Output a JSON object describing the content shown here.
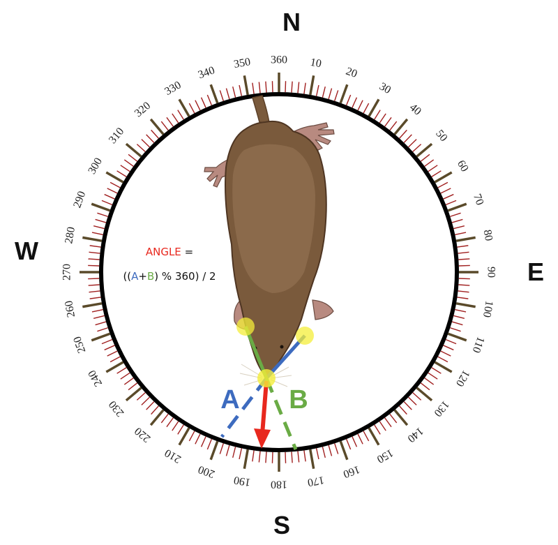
{
  "cardinals": {
    "north": "N",
    "east": "E",
    "south": "S",
    "west": "W"
  },
  "degree_labels": [
    "360",
    "10",
    "20",
    "30",
    "40",
    "50",
    "60",
    "70",
    "80",
    "90",
    "100",
    "110",
    "120",
    "130",
    "140",
    "150",
    "160",
    "170",
    "180",
    "190",
    "200",
    "210",
    "220",
    "230",
    "240",
    "250",
    "260",
    "270",
    "280",
    "290",
    "300",
    "310",
    "320",
    "330",
    "340",
    "350"
  ],
  "formula": {
    "angle_word": "ANGLE",
    "equals": " =",
    "line2_open": "((",
    "a": "A",
    "plus": "+",
    "b": "B",
    "line2_close": ") % 360) / 2"
  },
  "vectors": {
    "a_label": "A",
    "b_label": "B"
  },
  "colors": {
    "red_arrow": "#e8281e",
    "a_blue": "#3d6bbf",
    "b_green": "#6aab45",
    "marker_yellow": "#f4ee3a",
    "major_tick": "#5a4a2a",
    "minor_tick": "#a01f1f",
    "ring": "#000000",
    "mole_body": "#7a5a3c",
    "mole_back": "#8b6a4b",
    "mole_skin": "#b88a80"
  }
}
